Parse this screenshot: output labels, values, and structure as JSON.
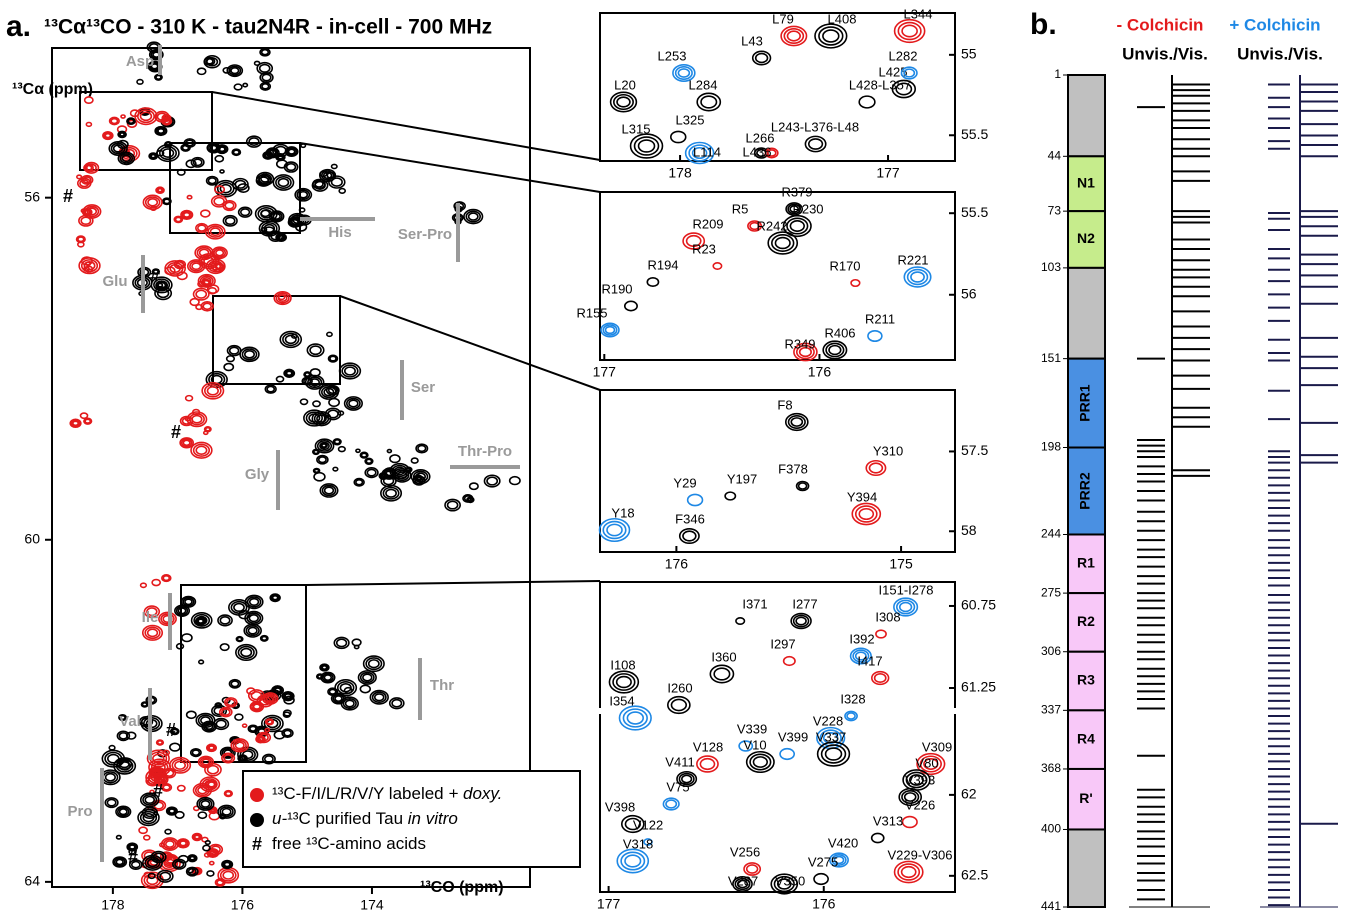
{
  "panel_a": {
    "label": "a.",
    "title": "¹³Cα¹³CO - 310 K - tau2N4R - in-cell - 700 MHz",
    "main": {
      "y_label": "¹³Cα (ppm)",
      "x_label": "¹³CO (ppm)",
      "xlim": [
        178.94,
        171.56
      ],
      "ylim": [
        54.25,
        64.06
      ],
      "xticks": [
        178,
        176,
        174
      ],
      "yticks": [
        56,
        60,
        64
      ],
      "regions": [
        "Asp",
        "His",
        "Ser-Pro",
        "Glu",
        "Ser",
        "Thr-Pro",
        "Gly",
        "Ile",
        "Thr",
        "Val",
        "Pro"
      ],
      "free_marker": "#"
    },
    "legend": [
      {
        "color": "#e31a1c",
        "parts": [
          {
            "text": "¹³C-F/I/L/R/V/Y labeled ",
            "italic": false
          },
          {
            "text": "+ doxy.",
            "italic": true
          }
        ]
      },
      {
        "color": "#000000",
        "parts": [
          {
            "text": "u-",
            "italic": true
          },
          {
            "text": "¹³C purified Tau ",
            "italic": false
          },
          {
            "text": "in vitro",
            "italic": true
          }
        ]
      },
      {
        "symbol": "#",
        "parts": [
          {
            "text": "free ¹³C-amino acids",
            "italic": false
          }
        ]
      }
    ],
    "insets": [
      {
        "xlim": [
          178.385,
          176.678
        ],
        "ylim": [
          54.74,
          55.66
        ],
        "xticks": [
          178,
          177
        ],
        "yticks": [
          55,
          55.5
        ],
        "peaks": [
          "L253",
          "L79",
          "L408",
          "L344",
          "L43",
          "L425",
          "L282",
          "L284",
          "L428-L357",
          "L20",
          "L325",
          "L266",
          "L243-L376-L48",
          "L315",
          "L114",
          "L436"
        ]
      },
      {
        "xlim": [
          177.02,
          175.37
        ],
        "ylim": [
          55.37,
          56.4
        ],
        "xticks": [
          177,
          176
        ],
        "yticks": [
          55.5,
          56
        ],
        "peaks": [
          "R379",
          "R230",
          "R5",
          "R242",
          "R209",
          "R23",
          "R170",
          "R221",
          "R194",
          "R190",
          "R155",
          "R211",
          "R406",
          "R349"
        ]
      },
      {
        "xlim": [
          176.34,
          174.76
        ],
        "ylim": [
          57.115,
          58.13
        ],
        "xticks": [
          176,
          175
        ],
        "yticks": [
          57.5,
          58
        ],
        "peaks": [
          "F8",
          "Y310",
          "Y29",
          "Y197",
          "F378",
          "Y394",
          "Y18",
          "F346"
        ]
      },
      {
        "xlim": [
          177.04,
          175.39
        ],
        "ylim_segments": [
          [
            60.604,
            61.384
          ],
          [
            61.488,
            62.6
          ]
        ],
        "xticks": [
          177,
          176
        ],
        "yticks": [
          60.75,
          61.25,
          62,
          62.5
        ],
        "peaks": [
          "I151-I278",
          "I371",
          "I277",
          "I308",
          "I392",
          "I297",
          "I417",
          "I360",
          "I108",
          "I260",
          "I354",
          "I328",
          "V228",
          "V339",
          "V399",
          "V337",
          "V128",
          "V10",
          "V309",
          "V411",
          "V80",
          "V393",
          "V75",
          "V226",
          "V398",
          "V313",
          "V122",
          "V420",
          "V318",
          "V256",
          "V275",
          "V229-V306",
          "V287",
          "V350"
        ]
      }
    ]
  },
  "panel_b": {
    "label": "b.",
    "residue_ticks": [
      1,
      44,
      73,
      103,
      151,
      198,
      244,
      275,
      306,
      337,
      368,
      400,
      441
    ],
    "domains": [
      {
        "name": null,
        "start": 1,
        "end": 44,
        "color": "#c0c0c0"
      },
      {
        "name": "N1",
        "start": 44,
        "end": 73,
        "color": "#c6ec8c"
      },
      {
        "name": "N2",
        "start": 73,
        "end": 103,
        "color": "#c6ec8c"
      },
      {
        "name": null,
        "start": 103,
        "end": 151,
        "color": "#c0c0c0"
      },
      {
        "name": "PRR1",
        "start": 151,
        "end": 198,
        "color": "#4a90e2"
      },
      {
        "name": "PRR2",
        "start": 198,
        "end": 244,
        "color": "#4a90e2"
      },
      {
        "name": "R1",
        "start": 244,
        "end": 275,
        "color": "#f8c8f8"
      },
      {
        "name": "R2",
        "start": 275,
        "end": 306,
        "color": "#f8c8f8"
      },
      {
        "name": "R3",
        "start": 306,
        "end": 337,
        "color": "#f8c8f8"
      },
      {
        "name": "R4",
        "start": 337,
        "end": 368,
        "color": "#f8c8f8"
      },
      {
        "name": "R'",
        "start": 368,
        "end": 400,
        "color": "#f8c8f8"
      },
      {
        "name": null,
        "start": 400,
        "end": 441,
        "color": "#c0c0c0"
      }
    ],
    "conditions": [
      {
        "name": "- Colchicin",
        "color": "#e31a1c",
        "header": "Unvis./Vis.",
        "line_color": "#000000",
        "unvisible": [
          18,
          151,
          194,
          197,
          200,
          203,
          208,
          212,
          216,
          221,
          226,
          232,
          237,
          242,
          247,
          252,
          256,
          261,
          266,
          270,
          275,
          279,
          283,
          288,
          292,
          297,
          301,
          306,
          310,
          315,
          319,
          323,
          327,
          331,
          336,
          361,
          379,
          383,
          388,
          392,
          396,
          401,
          405,
          409,
          414,
          418,
          423,
          427,
          432,
          437
        ],
        "visible": [
          6,
          9,
          12,
          16,
          20,
          25,
          29,
          35,
          40,
          44,
          52,
          57,
          73,
          76,
          79,
          88,
          93,
          99,
          104,
          108,
          113,
          118,
          126,
          134,
          140,
          146,
          152,
          160,
          167,
          177,
          182,
          187,
          210,
          213
        ]
      },
      {
        "name": "+ Colchicin",
        "color": "#1e88e5",
        "header": "Unvis./Vis.",
        "line_color": "#1a1a4a",
        "unvisible": [
          6,
          13,
          18,
          24,
          29,
          36,
          40,
          74,
          77,
          83,
          93,
          98,
          104,
          110,
          117,
          124,
          131,
          141,
          148,
          152,
          168,
          183,
          200,
          203,
          206,
          210,
          214,
          218,
          222,
          226,
          230,
          234,
          238,
          242,
          247,
          251,
          255,
          259,
          263,
          267,
          271,
          276,
          280,
          284,
          288,
          292,
          296,
          300,
          304,
          308,
          312,
          316,
          320,
          324,
          328,
          332,
          336,
          340,
          344,
          348,
          352,
          356,
          360,
          364,
          368,
          372,
          376,
          380,
          384,
          388,
          392,
          396,
          400,
          404,
          408,
          412,
          416,
          420,
          424,
          428,
          432,
          436,
          440
        ],
        "visible": [
          6,
          10,
          15,
          20,
          27,
          33,
          38,
          44,
          73,
          76,
          81,
          86,
          96,
          101,
          107,
          113,
          122,
          140,
          150,
          156,
          165,
          185,
          202,
          206,
          397
        ]
      }
    ]
  }
}
